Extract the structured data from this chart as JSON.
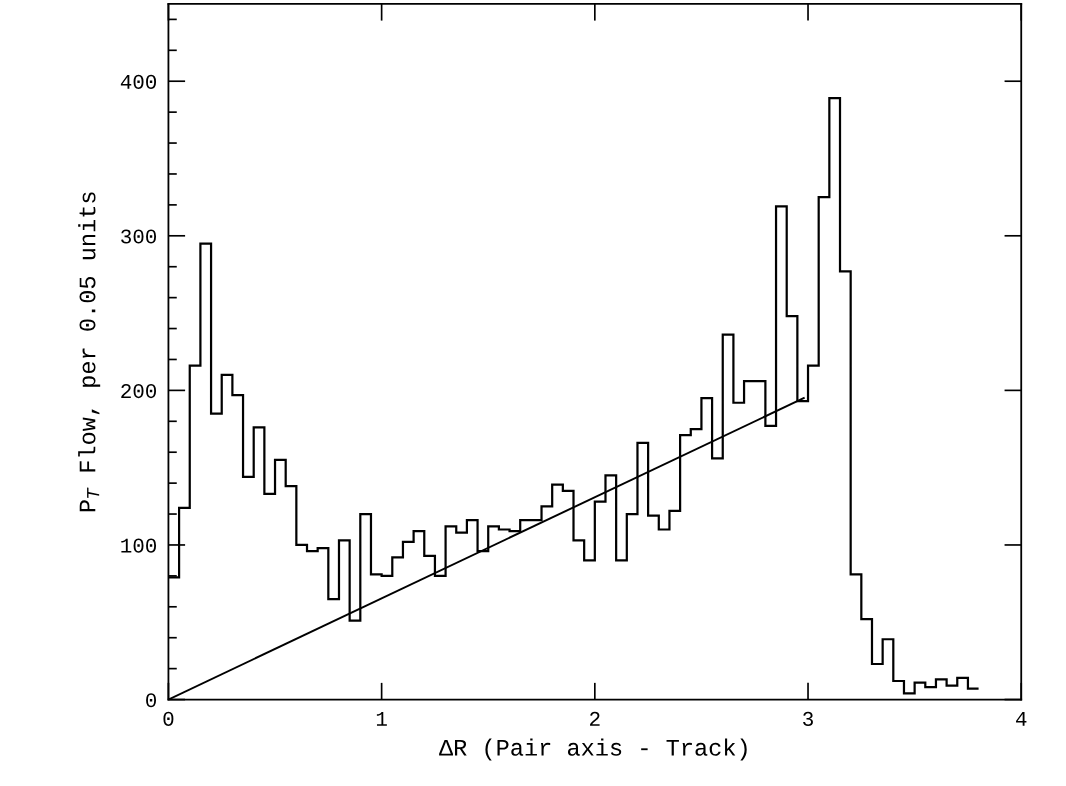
{
  "chart_data": {
    "type": "histogram",
    "xlabel": "ΔR (Pair axis - Track)",
    "ylabel": "P$_{T}$ Flow, per 0.05 units",
    "color": "#000000",
    "bins": [
      0,
      0.05,
      0.1,
      0.15,
      0.2,
      0.25,
      0.3,
      0.35,
      0.4,
      0.45,
      0.5,
      0.55,
      0.6,
      0.65,
      0.7,
      0.75,
      0.8,
      0.85,
      0.9,
      0.95,
      1.0,
      1.05,
      1.1,
      1.15,
      1.2,
      1.25,
      1.3,
      1.35,
      1.4,
      1.45,
      1.5,
      1.55,
      1.6,
      1.65,
      1.7,
      1.75,
      1.8,
      1.85,
      1.9,
      1.95,
      2.0,
      2.05,
      2.1,
      2.15,
      2.2,
      2.25,
      2.3,
      2.35,
      2.4,
      2.45,
      2.5,
      2.55,
      2.6,
      2.65,
      2.7,
      2.75,
      2.8,
      2.85,
      2.9,
      2.95,
      3.0,
      3.05,
      3.1,
      3.15,
      3.2,
      3.25,
      3.3,
      3.35,
      3.4,
      3.45,
      3.5,
      3.55,
      3.6,
      3.65,
      3.7,
      3.75,
      3.8
    ],
    "values": [
      79,
      124,
      216,
      295,
      185,
      210,
      197,
      144,
      176,
      133,
      155,
      138,
      100,
      96,
      98,
      65,
      103,
      51,
      120,
      81,
      80,
      92,
      102,
      109,
      93,
      80,
      112,
      108,
      116,
      96,
      112,
      110,
      109,
      116,
      116,
      125,
      139,
      135,
      103,
      90,
      128,
      145,
      90,
      120,
      166,
      119,
      110,
      122,
      171,
      175,
      195,
      156,
      236,
      192,
      206,
      206,
      177,
      319,
      248,
      193,
      216,
      325,
      389,
      277,
      81,
      52,
      23,
      39,
      12,
      4,
      11,
      8,
      13,
      9,
      14,
      7
    ],
    "series": [
      {
        "type": "line",
        "x": [
          0,
          2.98
        ],
        "values": [
          0,
          195
        ],
        "color": "#000000"
      }
    ],
    "xlim": [
      0,
      4
    ],
    "xticks": [
      0,
      1,
      2,
      3,
      4
    ],
    "ylim": [
      0,
      450
    ],
    "yticks": [
      0,
      {
        "value": 20,
        "label": null
      },
      {
        "value": 40,
        "label": null
      },
      {
        "value": 60,
        "label": null
      },
      {
        "value": 80,
        "label": null
      },
      100,
      {
        "value": 120,
        "label": null
      },
      {
        "value": 140,
        "label": null
      },
      {
        "value": 160,
        "label": null
      },
      {
        "value": 180,
        "label": null
      },
      200,
      {
        "value": 220,
        "label": null
      },
      {
        "value": 240,
        "label": null
      },
      {
        "value": 260,
        "label": null
      },
      {
        "value": 280,
        "label": null
      },
      300,
      {
        "value": 320,
        "label": null
      },
      {
        "value": 340,
        "label": null
      },
      {
        "value": 360,
        "label": null
      },
      {
        "value": 380,
        "label": null
      },
      400,
      {
        "value": 420,
        "label": null
      },
      {
        "value": 440,
        "label": null
      }
    ],
    "grid": false,
    "legend": false
  }
}
